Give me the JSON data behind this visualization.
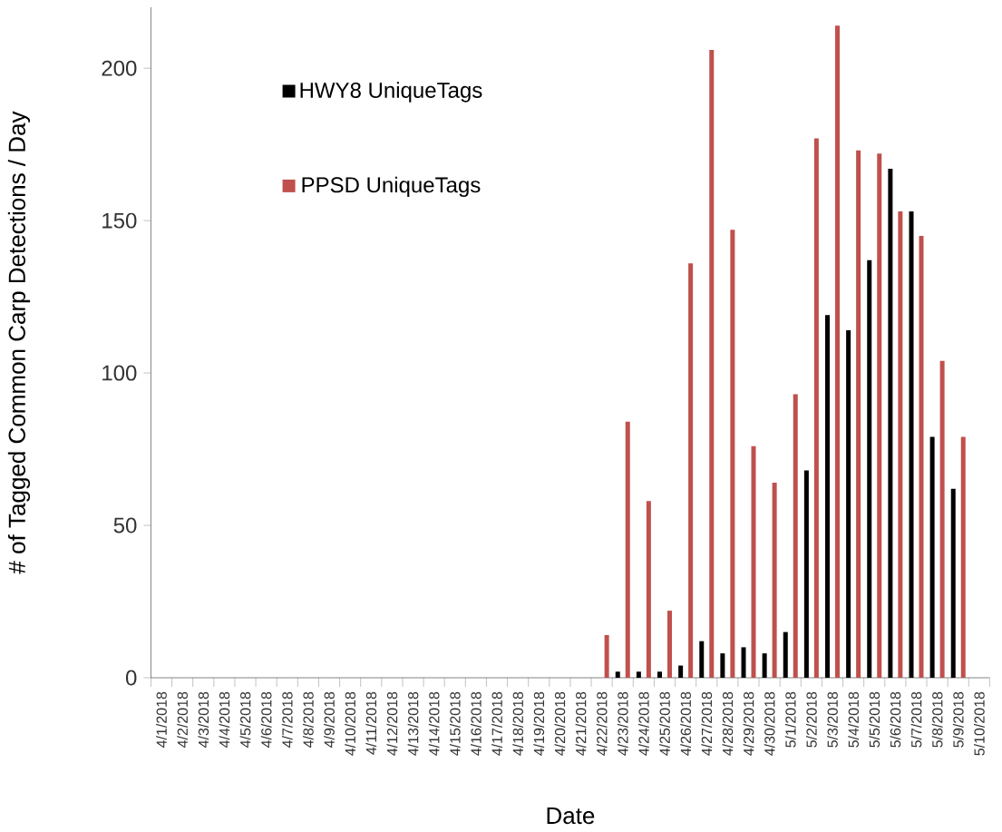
{
  "chart_data": {
    "type": "bar",
    "xlabel": "Date",
    "ylabel": "# of Tagged Common Carp Detections / Day",
    "categories": [
      "4/1/2018",
      "4/2/2018",
      "4/3/2018",
      "4/4/2018",
      "4/5/2018",
      "4/6/2018",
      "4/7/2018",
      "4/8/2018",
      "4/9/2018",
      "4/10/2018",
      "4/11/2018",
      "4/12/2018",
      "4/13/2018",
      "4/14/2018",
      "4/15/2018",
      "4/16/2018",
      "4/17/2018",
      "4/18/2018",
      "4/19/2018",
      "4/20/2018",
      "4/21/2018",
      "4/22/2018",
      "4/23/2018",
      "4/24/2018",
      "4/25/2018",
      "4/26/2018",
      "4/27/2018",
      "4/28/2018",
      "4/29/2018",
      "4/30/2018",
      "5/1/2018",
      "5/2/2018",
      "5/3/2018",
      "5/4/2018",
      "5/5/2018",
      "5/6/2018",
      "5/7/2018",
      "5/8/2018",
      "5/9/2018",
      "5/10/2018"
    ],
    "series": [
      {
        "name": "HWY8 UniqueTags",
        "color": "#000000",
        "values": [
          0,
          0,
          0,
          0,
          0,
          0,
          0,
          0,
          0,
          0,
          0,
          0,
          0,
          0,
          0,
          0,
          0,
          0,
          0,
          0,
          0,
          0,
          2,
          2,
          2,
          4,
          12,
          8,
          10,
          8,
          15,
          68,
          119,
          114,
          137,
          167,
          153,
          79,
          62,
          0
        ]
      },
      {
        "name": "PPSD UniqueTags",
        "color": "#c0504d",
        "values": [
          0,
          0,
          0,
          0,
          0,
          0,
          0,
          0,
          0,
          0,
          0,
          0,
          0,
          0,
          0,
          0,
          0,
          0,
          0,
          0,
          0,
          14,
          84,
          58,
          22,
          136,
          206,
          147,
          76,
          64,
          93,
          177,
          214,
          173,
          172,
          153,
          145,
          104,
          79,
          0
        ]
      }
    ],
    "ylim": [
      0,
      220
    ],
    "yticks": [
      0,
      50,
      100,
      150,
      200
    ],
    "grid": false,
    "legend": "top left"
  }
}
